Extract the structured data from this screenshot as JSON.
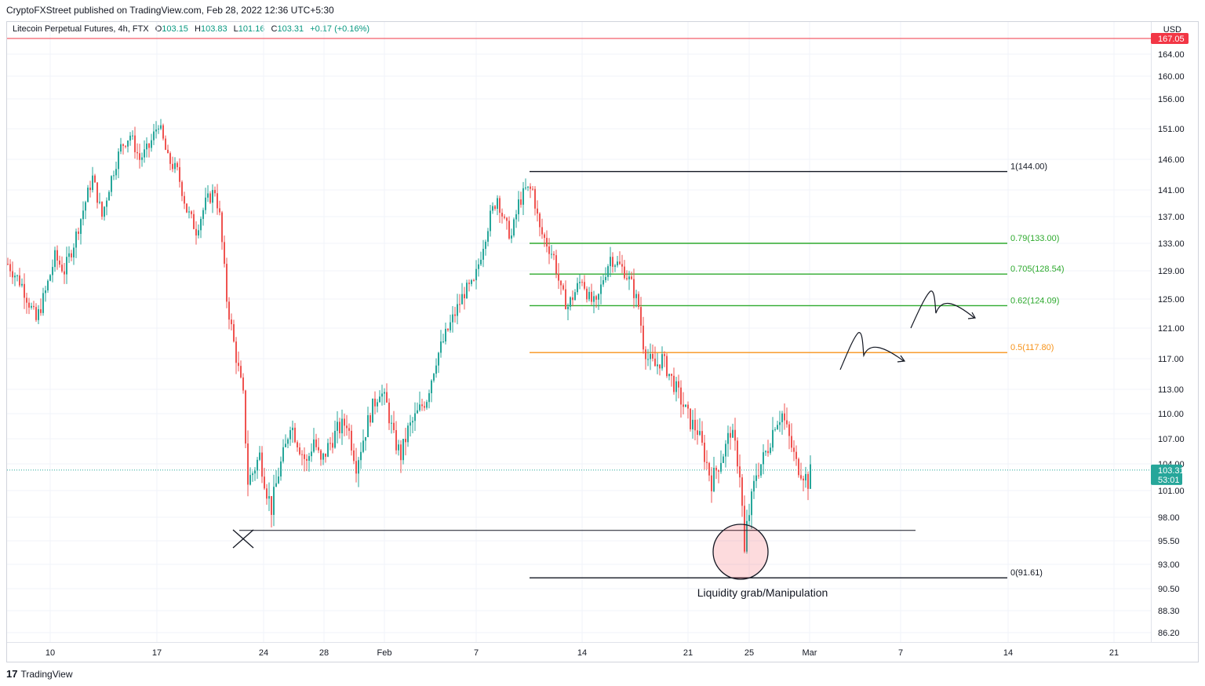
{
  "header": {
    "publisher_line": "CryptoFXStreet published on TradingView.com, Feb 28, 2022 12:36 UTC+5:30"
  },
  "legend": {
    "symbol": "Litecoin Perpetual Futures, 4h, FTX",
    "o_label": "O",
    "o_value": "103.15",
    "h_label": "H",
    "h_value": "103.83",
    "l_label": "L",
    "l_value": "101.16",
    "c_label": "C",
    "c_value": "103.31",
    "change": "+0.17 (+0.16%)"
  },
  "footer": {
    "logo_glyph": "17",
    "brand": "TradingView"
  },
  "colors": {
    "up": "#26a69a",
    "down": "#ef5350",
    "fib_green": "#2eaa2e",
    "fib_orange": "#f7931a",
    "alert_red": "#f23645",
    "text": "#131722",
    "grid": "#f0f3fa"
  },
  "chart_data": {
    "type": "candlestick",
    "ylim": [
      85,
      168
    ],
    "currency": "USD",
    "price_ticks": [
      "164.00",
      "160.00",
      "156.00",
      "151.00",
      "146.00",
      "141.00",
      "137.00",
      "133.00",
      "129.00",
      "125.00",
      "121.00",
      "117.00",
      "113.00",
      "110.00",
      "107.00",
      "104.00",
      "101.00",
      "98.00",
      "95.50",
      "93.00",
      "90.50",
      "88.30",
      "86.20"
    ],
    "date_ticks": [
      "10",
      "17",
      "24",
      "28",
      "Feb",
      "7",
      "14",
      "21",
      "25",
      "Mar",
      "7",
      "14",
      "21"
    ],
    "current_price": {
      "value": 103.31,
      "label": "103.31",
      "countdown": "53:01"
    },
    "alert_line": {
      "value": 167.05,
      "label": "167.05"
    },
    "fibonacci": [
      {
        "level": "1",
        "price": 144.0,
        "label": "1(144.00)",
        "color": "#131722"
      },
      {
        "level": "0.79",
        "price": 133.0,
        "label": "0.79(133.00)",
        "color": "#2eaa2e"
      },
      {
        "level": "0.705",
        "price": 128.54,
        "label": "0.705(128.54)",
        "color": "#2eaa2e"
      },
      {
        "level": "0.62",
        "price": 124.09,
        "label": "0.62(124.09)",
        "color": "#2eaa2e"
      },
      {
        "level": "0.5",
        "price": 117.8,
        "label": "0.5(117.80)",
        "color": "#f7931a"
      },
      {
        "level": "0",
        "price": 91.61,
        "label": "0(91.61)",
        "color": "#131722"
      }
    ],
    "support_line": {
      "price": 96.6
    },
    "annotation": "Liquidity grab/Manipulation",
    "price_path": [
      [
        0,
        130
      ],
      [
        6,
        127
      ],
      [
        12,
        122
      ],
      [
        16,
        126
      ],
      [
        20,
        131
      ],
      [
        24,
        129
      ],
      [
        28,
        133
      ],
      [
        32,
        138
      ],
      [
        36,
        143
      ],
      [
        40,
        137
      ],
      [
        44,
        143
      ],
      [
        48,
        148
      ],
      [
        52,
        150
      ],
      [
        56,
        146
      ],
      [
        60,
        148
      ],
      [
        64,
        152
      ],
      [
        68,
        146
      ],
      [
        72,
        144
      ],
      [
        76,
        138
      ],
      [
        80,
        135
      ],
      [
        84,
        139
      ],
      [
        88,
        141
      ],
      [
        90,
        137
      ],
      [
        93,
        125
      ],
      [
        96,
        119
      ],
      [
        100,
        112
      ],
      [
        102,
        102
      ],
      [
        104,
        103
      ],
      [
        107,
        105
      ],
      [
        110,
        101
      ],
      [
        112,
        99
      ],
      [
        115,
        103
      ],
      [
        118,
        106
      ],
      [
        120,
        109
      ],
      [
        124,
        106
      ],
      [
        127,
        104
      ],
      [
        130,
        107
      ],
      [
        133,
        104
      ],
      [
        136,
        106
      ],
      [
        140,
        108
      ],
      [
        144,
        109
      ],
      [
        148,
        104
      ],
      [
        151,
        107
      ],
      [
        154,
        110
      ],
      [
        158,
        113
      ],
      [
        161,
        111
      ],
      [
        164,
        107
      ],
      [
        167,
        105
      ],
      [
        170,
        108
      ],
      [
        174,
        110
      ],
      [
        178,
        112
      ],
      [
        182,
        117
      ],
      [
        186,
        120
      ],
      [
        190,
        123
      ],
      [
        194,
        126
      ],
      [
        198,
        127
      ],
      [
        202,
        133
      ],
      [
        205,
        137
      ],
      [
        208,
        140
      ],
      [
        211,
        136
      ],
      [
        214,
        134
      ],
      [
        217,
        139
      ],
      [
        220,
        141
      ],
      [
        223,
        141
      ],
      [
        226,
        135
      ],
      [
        229,
        133
      ],
      [
        232,
        131
      ],
      [
        235,
        126
      ],
      [
        238,
        124
      ],
      [
        241,
        126
      ],
      [
        244,
        128
      ],
      [
        247,
        125
      ],
      [
        250,
        124
      ],
      [
        253,
        128
      ],
      [
        256,
        131
      ],
      [
        259,
        130
      ],
      [
        262,
        129
      ],
      [
        265,
        127
      ],
      [
        268,
        124
      ],
      [
        270,
        119
      ],
      [
        272,
        117
      ],
      [
        275,
        116
      ],
      [
        278,
        117
      ],
      [
        281,
        115
      ],
      [
        284,
        113
      ],
      [
        287,
        111
      ],
      [
        290,
        109
      ],
      [
        293,
        108
      ],
      [
        296,
        105
      ],
      [
        299,
        102
      ],
      [
        302,
        104
      ],
      [
        305,
        106
      ],
      [
        307,
        108
      ],
      [
        309,
        106
      ],
      [
        311,
        103
      ],
      [
        312,
        99
      ],
      [
        313,
        94
      ],
      [
        314,
        97
      ],
      [
        316,
        100
      ],
      [
        318,
        103
      ],
      [
        320,
        104
      ],
      [
        323,
        106
      ],
      [
        326,
        109
      ],
      [
        329,
        110
      ],
      [
        332,
        107
      ],
      [
        335,
        104
      ],
      [
        338,
        103
      ],
      [
        340,
        102
      ],
      [
        341,
        103
      ]
    ]
  }
}
